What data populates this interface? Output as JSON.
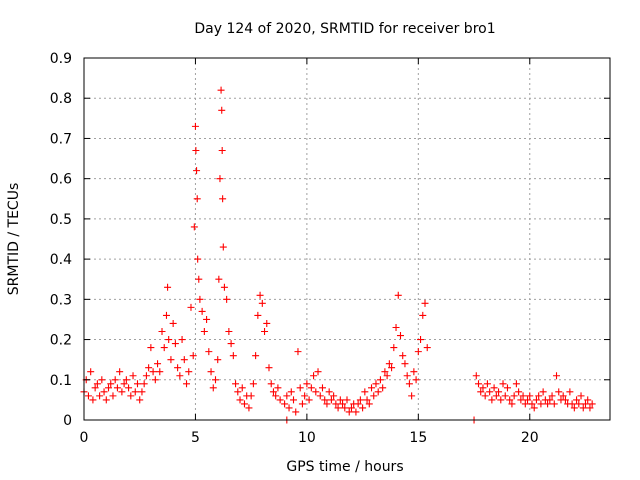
{
  "chart_data": {
    "type": "scatter",
    "title": "Day 124 of 2020, SRMTID for receiver bro1",
    "xlabel": "GPS time / hours",
    "ylabel": "SRMTID / TECUs",
    "xlim": [
      0,
      23.6
    ],
    "ylim": [
      0,
      0.9
    ],
    "xticks": [
      0,
      5,
      10,
      15,
      20
    ],
    "yticks": [
      0,
      0.1,
      0.2,
      0.3,
      0.4,
      0.5,
      0.6,
      0.7,
      0.8,
      0.9
    ],
    "xtick_labels": [
      "0",
      "5",
      "10",
      "15",
      "20"
    ],
    "ytick_labels": [
      "0",
      "0.1",
      "0.2",
      "0.3",
      "0.4",
      "0.5",
      "0.6",
      "0.7",
      "0.8",
      "0.9"
    ],
    "grid": true,
    "marker": "plus",
    "color": "#ff0000",
    "series": [
      {
        "name": "SRMTID",
        "points": [
          [
            0.0,
            0.07
          ],
          [
            0.1,
            0.1
          ],
          [
            0.2,
            0.06
          ],
          [
            0.3,
            0.12
          ],
          [
            0.4,
            0.05
          ],
          [
            0.5,
            0.08
          ],
          [
            0.6,
            0.09
          ],
          [
            0.7,
            0.06
          ],
          [
            0.8,
            0.1
          ],
          [
            0.9,
            0.07
          ],
          [
            1.0,
            0.05
          ],
          [
            1.1,
            0.08
          ],
          [
            1.2,
            0.09
          ],
          [
            1.3,
            0.06
          ],
          [
            1.4,
            0.1
          ],
          [
            1.5,
            0.08
          ],
          [
            1.6,
            0.12
          ],
          [
            1.7,
            0.07
          ],
          [
            1.8,
            0.09
          ],
          [
            1.9,
            0.1
          ],
          [
            2.0,
            0.08
          ],
          [
            2.1,
            0.06
          ],
          [
            2.2,
            0.11
          ],
          [
            2.3,
            0.07
          ],
          [
            2.4,
            0.09
          ],
          [
            2.5,
            0.05
          ],
          [
            2.6,
            0.07
          ],
          [
            2.7,
            0.09
          ],
          [
            2.8,
            0.11
          ],
          [
            2.9,
            0.13
          ],
          [
            3.0,
            0.18
          ],
          [
            3.1,
            0.12
          ],
          [
            3.2,
            0.1
          ],
          [
            3.3,
            0.14
          ],
          [
            3.4,
            0.12
          ],
          [
            3.5,
            0.22
          ],
          [
            3.6,
            0.18
          ],
          [
            3.7,
            0.26
          ],
          [
            3.75,
            0.33
          ],
          [
            3.8,
            0.2
          ],
          [
            3.9,
            0.15
          ],
          [
            4.0,
            0.24
          ],
          [
            4.1,
            0.19
          ],
          [
            4.2,
            0.13
          ],
          [
            4.3,
            0.11
          ],
          [
            4.4,
            0.2
          ],
          [
            4.5,
            0.15
          ],
          [
            4.6,
            0.09
          ],
          [
            4.7,
            0.12
          ],
          [
            4.8,
            0.28
          ],
          [
            4.9,
            0.16
          ],
          [
            4.95,
            0.48
          ],
          [
            5.0,
            0.73
          ],
          [
            5.02,
            0.67
          ],
          [
            5.05,
            0.62
          ],
          [
            5.08,
            0.55
          ],
          [
            5.1,
            0.4
          ],
          [
            5.15,
            0.35
          ],
          [
            5.2,
            0.3
          ],
          [
            5.3,
            0.27
          ],
          [
            5.4,
            0.22
          ],
          [
            5.5,
            0.25
          ],
          [
            5.6,
            0.17
          ],
          [
            5.7,
            0.12
          ],
          [
            5.8,
            0.08
          ],
          [
            5.9,
            0.1
          ],
          [
            6.0,
            0.15
          ],
          [
            6.05,
            0.35
          ],
          [
            6.1,
            0.6
          ],
          [
            6.15,
            0.82
          ],
          [
            6.18,
            0.77
          ],
          [
            6.2,
            0.67
          ],
          [
            6.22,
            0.55
          ],
          [
            6.25,
            0.43
          ],
          [
            6.3,
            0.33
          ],
          [
            6.4,
            0.3
          ],
          [
            6.5,
            0.22
          ],
          [
            6.6,
            0.19
          ],
          [
            6.7,
            0.16
          ],
          [
            6.8,
            0.09
          ],
          [
            6.9,
            0.07
          ],
          [
            7.0,
            0.05
          ],
          [
            7.1,
            0.08
          ],
          [
            7.2,
            0.04
          ],
          [
            7.3,
            0.06
          ],
          [
            7.4,
            0.03
          ],
          [
            7.5,
            0.06
          ],
          [
            7.6,
            0.09
          ],
          [
            7.7,
            0.16
          ],
          [
            7.8,
            0.26
          ],
          [
            7.9,
            0.31
          ],
          [
            8.0,
            0.29
          ],
          [
            8.1,
            0.22
          ],
          [
            8.2,
            0.24
          ],
          [
            8.3,
            0.13
          ],
          [
            8.4,
            0.09
          ],
          [
            8.5,
            0.07
          ],
          [
            8.6,
            0.06
          ],
          [
            8.7,
            0.08
          ],
          [
            8.8,
            0.05
          ],
          [
            9.0,
            0.04
          ],
          [
            9.1,
            0.06
          ],
          [
            9.2,
            0.03
          ],
          [
            9.3,
            0.07
          ],
          [
            9.4,
            0.05
          ],
          [
            9.5,
            0.02
          ],
          [
            9.6,
            0.17
          ],
          [
            9.7,
            0.08
          ],
          [
            9.8,
            0.04
          ],
          [
            9.9,
            0.06
          ],
          [
            10.0,
            0.09
          ],
          [
            10.1,
            0.05
          ],
          [
            10.2,
            0.08
          ],
          [
            10.3,
            0.11
          ],
          [
            10.4,
            0.07
          ],
          [
            10.5,
            0.12
          ],
          [
            10.6,
            0.06
          ],
          [
            10.7,
            0.08
          ],
          [
            10.8,
            0.05
          ],
          [
            10.9,
            0.04
          ],
          [
            11.0,
            0.07
          ],
          [
            11.1,
            0.05
          ],
          [
            11.2,
            0.06
          ],
          [
            11.3,
            0.04
          ],
          [
            11.4,
            0.03
          ],
          [
            11.5,
            0.05
          ],
          [
            11.6,
            0.04
          ],
          [
            11.7,
            0.03
          ],
          [
            11.8,
            0.05
          ],
          [
            11.9,
            0.02
          ],
          [
            12.0,
            0.03
          ],
          [
            12.1,
            0.04
          ],
          [
            12.2,
            0.02
          ],
          [
            12.3,
            0.04
          ],
          [
            12.4,
            0.05
          ],
          [
            12.5,
            0.03
          ],
          [
            12.6,
            0.07
          ],
          [
            12.7,
            0.05
          ],
          [
            12.8,
            0.04
          ],
          [
            12.9,
            0.08
          ],
          [
            13.0,
            0.06
          ],
          [
            13.1,
            0.09
          ],
          [
            13.2,
            0.07
          ],
          [
            13.3,
            0.1
          ],
          [
            13.4,
            0.08
          ],
          [
            13.5,
            0.12
          ],
          [
            13.6,
            0.11
          ],
          [
            13.7,
            0.14
          ],
          [
            13.8,
            0.13
          ],
          [
            13.9,
            0.18
          ],
          [
            14.0,
            0.23
          ],
          [
            14.1,
            0.31
          ],
          [
            14.2,
            0.21
          ],
          [
            14.3,
            0.16
          ],
          [
            14.4,
            0.14
          ],
          [
            14.5,
            0.11
          ],
          [
            14.6,
            0.09
          ],
          [
            14.7,
            0.06
          ],
          [
            14.8,
            0.12
          ],
          [
            14.9,
            0.1
          ],
          [
            15.0,
            0.17
          ],
          [
            15.1,
            0.2
          ],
          [
            15.2,
            0.26
          ],
          [
            15.3,
            0.29
          ],
          [
            15.4,
            0.18
          ],
          [
            17.5,
            0.0
          ],
          [
            17.6,
            0.11
          ],
          [
            17.7,
            0.09
          ],
          [
            17.8,
            0.07
          ],
          [
            17.9,
            0.08
          ],
          [
            18.0,
            0.06
          ],
          [
            18.1,
            0.09
          ],
          [
            18.2,
            0.07
          ],
          [
            18.3,
            0.05
          ],
          [
            18.4,
            0.08
          ],
          [
            18.5,
            0.06
          ],
          [
            18.6,
            0.07
          ],
          [
            18.7,
            0.05
          ],
          [
            18.8,
            0.09
          ],
          [
            18.9,
            0.06
          ],
          [
            19.0,
            0.08
          ],
          [
            19.1,
            0.05
          ],
          [
            19.2,
            0.04
          ],
          [
            19.3,
            0.06
          ],
          [
            19.4,
            0.09
          ],
          [
            19.5,
            0.07
          ],
          [
            19.6,
            0.05
          ],
          [
            19.7,
            0.06
          ],
          [
            19.8,
            0.04
          ],
          [
            19.9,
            0.05
          ],
          [
            20.0,
            0.06
          ],
          [
            20.1,
            0.04
          ],
          [
            20.2,
            0.03
          ],
          [
            20.3,
            0.05
          ],
          [
            20.4,
            0.06
          ],
          [
            20.5,
            0.04
          ],
          [
            20.6,
            0.07
          ],
          [
            20.7,
            0.05
          ],
          [
            20.8,
            0.04
          ],
          [
            20.9,
            0.05
          ],
          [
            21.0,
            0.06
          ],
          [
            21.1,
            0.04
          ],
          [
            21.2,
            0.11
          ],
          [
            21.3,
            0.07
          ],
          [
            21.4,
            0.05
          ],
          [
            21.5,
            0.06
          ],
          [
            21.6,
            0.05
          ],
          [
            21.7,
            0.04
          ],
          [
            21.8,
            0.07
          ],
          [
            21.9,
            0.04
          ],
          [
            22.0,
            0.03
          ],
          [
            22.1,
            0.05
          ],
          [
            22.2,
            0.04
          ],
          [
            22.3,
            0.06
          ],
          [
            22.4,
            0.03
          ],
          [
            22.5,
            0.04
          ],
          [
            22.6,
            0.05
          ],
          [
            22.7,
            0.03
          ],
          [
            22.8,
            0.04
          ],
          [
            9.1,
            0.0
          ]
        ]
      }
    ]
  }
}
